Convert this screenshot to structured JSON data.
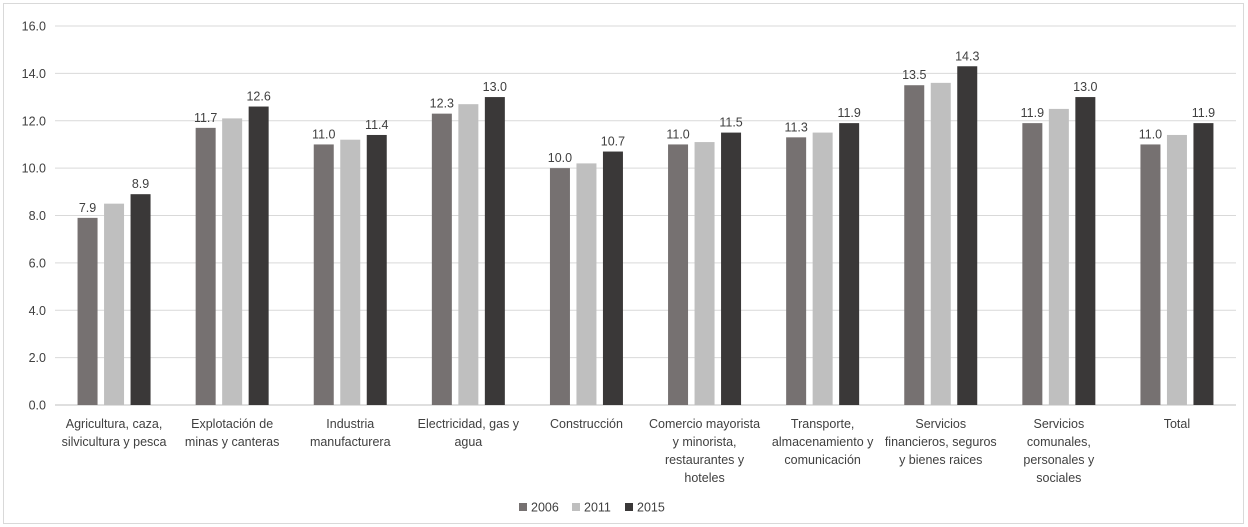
{
  "chart_data": {
    "type": "bar",
    "title": "",
    "xlabel": "",
    "ylabel": "",
    "ylim": [
      0,
      16
    ],
    "yticks": [
      "0.0",
      "2.0",
      "4.0",
      "6.0",
      "8.0",
      "10.0",
      "12.0",
      "14.0",
      "16.0"
    ],
    "ytick_values": [
      0,
      2,
      4,
      6,
      8,
      10,
      12,
      14,
      16
    ],
    "grid": true,
    "legend_position": "bottom-center",
    "categories": [
      [
        "Agricultura, caza,",
        "silvicultura y pesca"
      ],
      [
        "Explotación de",
        "minas y canteras"
      ],
      [
        "Industria",
        "manufacturera"
      ],
      [
        "Electricidad, gas y",
        "agua"
      ],
      [
        "Construcción"
      ],
      [
        "Comercio mayorista",
        "y minorista,",
        "restaurantes y",
        "hoteles"
      ],
      [
        "Transporte,",
        "almacenamiento y",
        "comunicación"
      ],
      [
        "Servicios",
        "financieros, seguros",
        "y bienes raices"
      ],
      [
        "Servicios",
        "comunales,",
        "personales y",
        "sociales"
      ],
      [
        "Total"
      ]
    ],
    "series": [
      {
        "name": "2006",
        "color": "#767171",
        "values": [
          7.9,
          11.7,
          11.0,
          12.3,
          10.0,
          11.0,
          11.3,
          13.5,
          11.9,
          11.0
        ],
        "labels": [
          "7.9",
          "11.7",
          "11.0",
          "12.3",
          "10.0",
          "11.0",
          "11.3",
          "13.5",
          "11.9",
          "11.0"
        ]
      },
      {
        "name": "2011",
        "color": "#bfbfbf",
        "values": [
          8.5,
          12.1,
          11.2,
          12.7,
          10.2,
          11.1,
          11.5,
          13.6,
          12.5,
          11.4
        ],
        "labels": []
      },
      {
        "name": "2015",
        "color": "#3a3838",
        "values": [
          8.9,
          12.6,
          11.4,
          13.0,
          10.7,
          11.5,
          11.9,
          14.3,
          13.0,
          11.9
        ],
        "labels": [
          "8.9",
          "12.6",
          "11.4",
          "13.0",
          "10.7",
          "11.5",
          "11.9",
          "14.3",
          "13.0",
          "11.9"
        ]
      }
    ]
  }
}
